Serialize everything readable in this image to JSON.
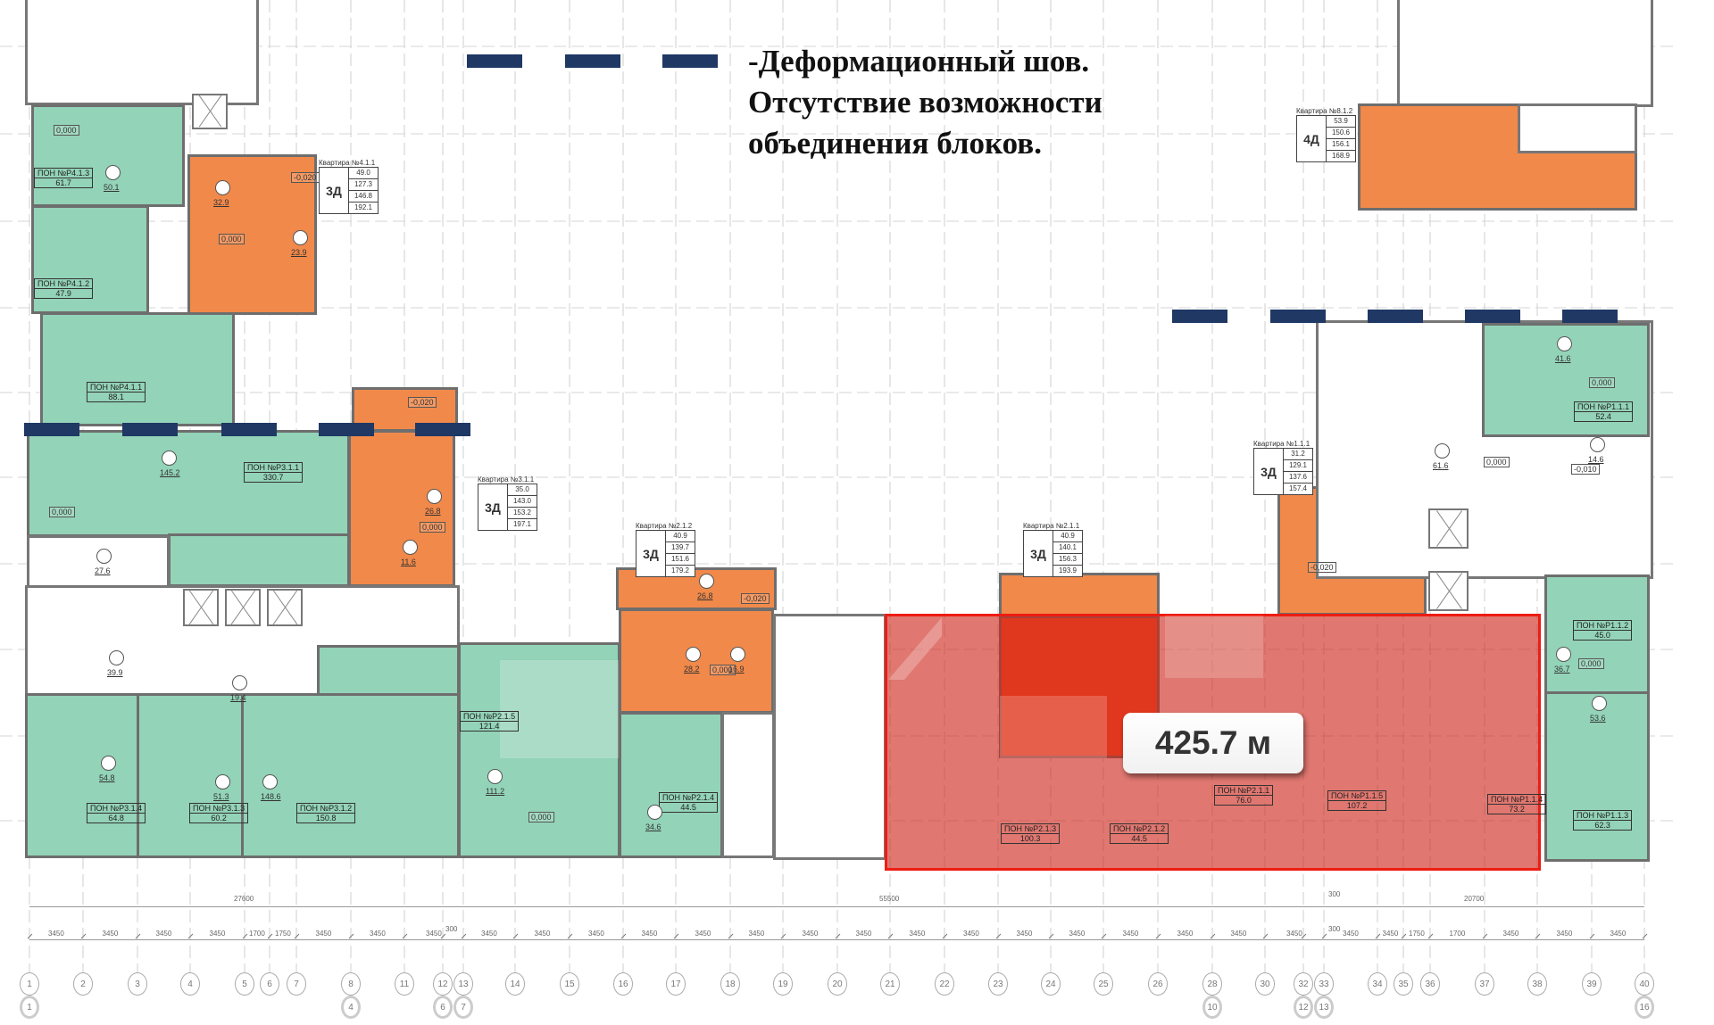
{
  "legend": {
    "lines": [
      "-Деформационный шов.",
      "Отсутствие возможности",
      "объединения блоков."
    ],
    "joint_color": "#1f3864"
  },
  "highlight": {
    "label": "425.7 м",
    "color": "#ee1c12"
  },
  "colors": {
    "commercial": "#93d3b8",
    "apartment": "#f1894a"
  },
  "apartments": [
    {
      "title": "Квартира №4.1.1",
      "type": "3Д",
      "values": [
        "49.0",
        "127.3",
        "146.8",
        "192.1"
      ]
    },
    {
      "title": "Квартира №3.1.1",
      "type": "3Д",
      "values": [
        "35.0",
        "143.0",
        "153.2",
        "197.1"
      ]
    },
    {
      "title": "Квартира №2.1.2",
      "type": "3Д",
      "values": [
        "40.9",
        "139.7",
        "151.6",
        "179.2"
      ]
    },
    {
      "title": "Квартира №2.1.1",
      "type": "3Д",
      "values": [
        "40.9",
        "140.1",
        "156.3",
        "193.9"
      ]
    },
    {
      "title": "Квартира №1.1.1",
      "type": "3Д",
      "values": [
        "31.2",
        "129.1",
        "137.6",
        "157.4"
      ]
    },
    {
      "title": "Квартира №8.1.2",
      "type": "4Д",
      "values": [
        "53.9",
        "150.6",
        "156.1",
        "168.9"
      ]
    }
  ],
  "premises": [
    {
      "name": "ПОН №Р4.1.3",
      "area": "61.7"
    },
    {
      "name": "ПОН №Р4.1.2",
      "area": "47.9"
    },
    {
      "name": "ПОН №Р4.1.1",
      "area": "88.1"
    },
    {
      "name": "ПОН №Р3.1.1",
      "area": "330.7"
    },
    {
      "name": "ПОН №Р3.1.4",
      "area": "64.8"
    },
    {
      "name": "ПОН №Р3.1.3",
      "area": "60.2"
    },
    {
      "name": "ПОН №Р3.1.2",
      "area": "150.8"
    },
    {
      "name": "ПОН №Р2.1.5",
      "area": "121.4"
    },
    {
      "name": "ПОН №Р2.1.4",
      "area": "44.5"
    },
    {
      "name": "ПОН №Р2.1.3",
      "area": "100.3"
    },
    {
      "name": "ПОН №Р2.1.2",
      "area": "44.5"
    },
    {
      "name": "ПОН №Р2.1.1",
      "area": "76.0"
    },
    {
      "name": "ПОН №Р1.1.5",
      "area": "107.2"
    },
    {
      "name": "ПОН №Р1.1.4",
      "area": "73.2"
    },
    {
      "name": "ПОН №Р1.1.1",
      "area": "52.4"
    },
    {
      "name": "ПОН №Р1.1.2",
      "area": "45.0"
    },
    {
      "name": "ПОН №Р1.1.3",
      "area": "62.3"
    }
  ],
  "rooms": [
    "50.1",
    "32.9",
    "23.9",
    "145.2",
    "27.6",
    "26.8",
    "11.6",
    "54.8",
    "51.3",
    "148.6",
    "39.9",
    "28.2",
    "26.8",
    "111.2",
    "34.6",
    "41.6",
    "61.6",
    "14.6",
    "36.7",
    "53.6",
    "19.4",
    "16.9"
  ],
  "levels": [
    "0,000",
    "-0,020",
    "0,000",
    "0,000",
    "0,000",
    "-0,020",
    "0,000",
    "0,000",
    "-0,020",
    "-0,010",
    "0,000",
    "0,000",
    "0,000",
    "-0,020"
  ],
  "dimensions": {
    "totals": [
      "27600",
      "55500",
      "20700"
    ],
    "offsets": [
      "300",
      "300",
      "300"
    ],
    "bays": [
      "3450",
      "3450",
      "3450",
      "3450",
      "1700",
      "1750",
      "3450",
      "3450",
      "3450",
      "3450",
      "3450",
      "3450",
      "3450",
      "3450",
      "3450",
      "3450",
      "3450",
      "3450",
      "3450",
      "3450",
      "3450",
      "3450",
      "3450",
      "3450",
      "3450",
      "3450",
      "3450",
      "1750",
      "1700",
      "3450",
      "3450",
      "3450",
      "3450"
    ]
  },
  "axes": {
    "primary": [
      "1",
      "2",
      "3",
      "4",
      "5",
      "6",
      "7",
      "8",
      "11",
      "12",
      "13",
      "14",
      "15",
      "16",
      "17",
      "18",
      "19",
      "20",
      "21",
      "22",
      "23",
      "24",
      "25",
      "26",
      "28",
      "30",
      "32",
      "33",
      "34",
      "35",
      "36",
      "37",
      "38",
      "39",
      "40"
    ],
    "secondary": [
      "1",
      "4",
      "6",
      "7",
      "10",
      "12",
      "13",
      "16"
    ]
  }
}
